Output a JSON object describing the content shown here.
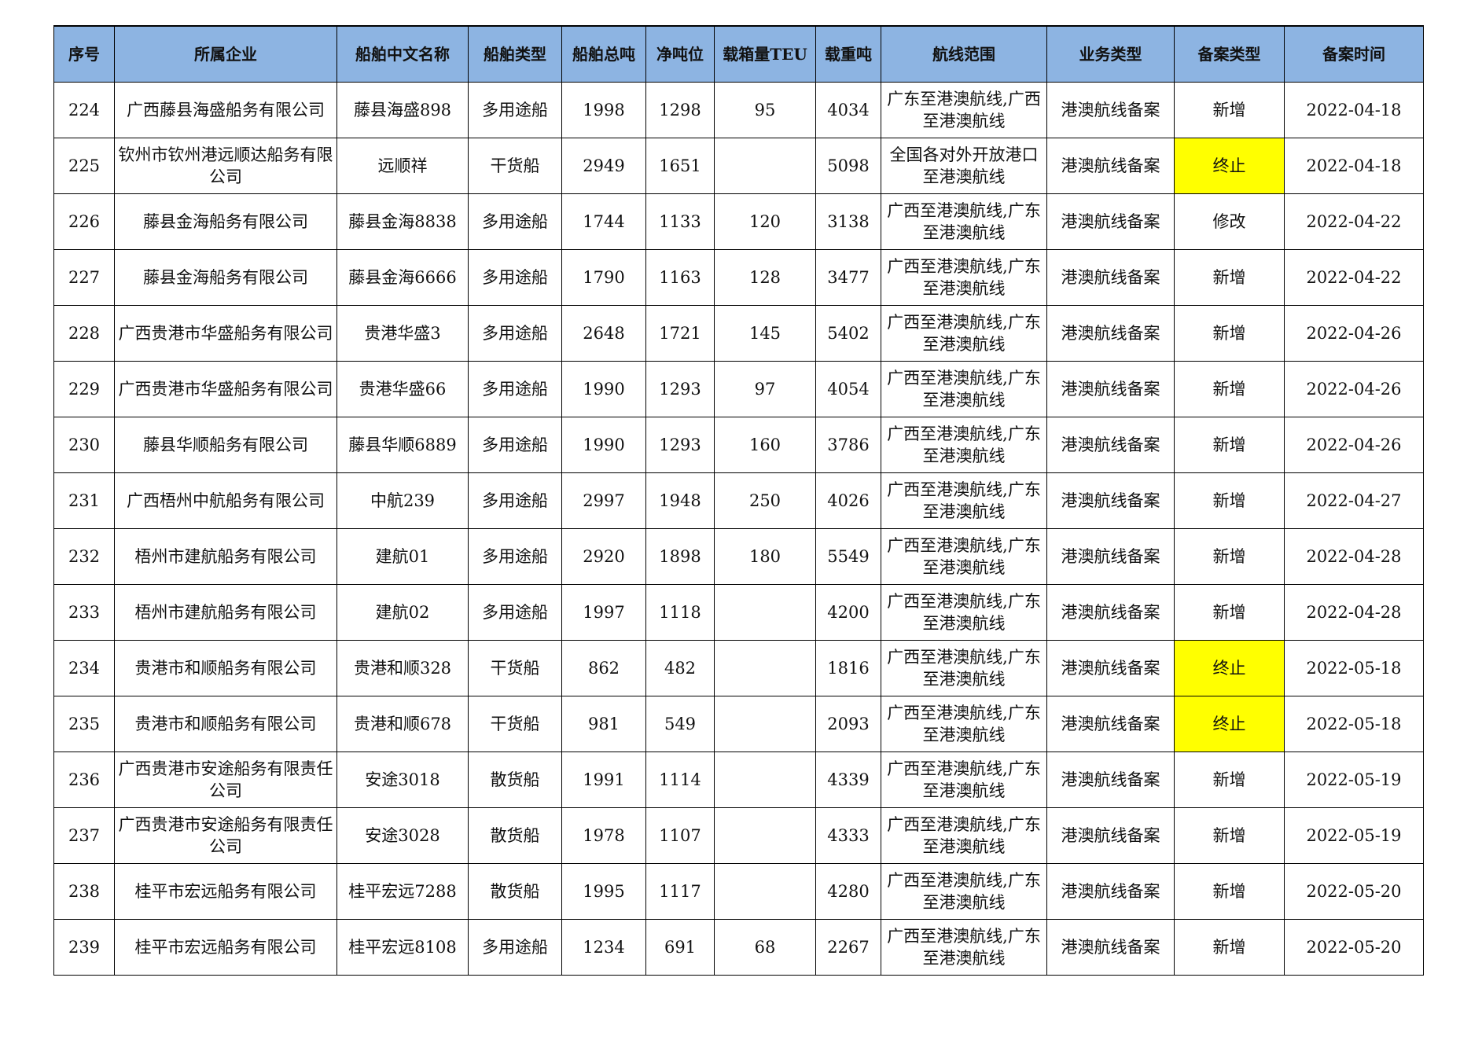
{
  "colors": {
    "header_bg": "#8DB4E2",
    "highlight": "#FFFF00"
  },
  "headers": [
    "序号",
    "所属企业",
    "船舶中文名称",
    "船舶类型",
    "船舶总吨",
    "净吨位",
    "载箱量TEU",
    "载重吨",
    "航线范围",
    "业务类型",
    "备案类型",
    "备案时间"
  ],
  "rows": [
    [
      "224",
      "广西藤县海盛船务有限公司",
      "藤县海盛898",
      "多用途船",
      "1998",
      "1298",
      "95",
      "4034",
      "广东至港澳航线,广西至港澳航线",
      "港澳航线备案",
      "新增",
      "2022-04-18"
    ],
    [
      "225",
      "钦州市钦州港远顺达船务有限公司",
      "远顺祥",
      "干货船",
      "2949",
      "1651",
      "",
      "5098",
      "全国各对外开放港口至港澳航线",
      "港澳航线备案",
      "终止",
      "2022-04-18"
    ],
    [
      "226",
      "藤县金海船务有限公司",
      "藤县金海8838",
      "多用途船",
      "1744",
      "1133",
      "120",
      "3138",
      "广西至港澳航线,广东至港澳航线",
      "港澳航线备案",
      "修改",
      "2022-04-22"
    ],
    [
      "227",
      "藤县金海船务有限公司",
      "藤县金海6666",
      "多用途船",
      "1790",
      "1163",
      "128",
      "3477",
      "广西至港澳航线,广东至港澳航线",
      "港澳航线备案",
      "新增",
      "2022-04-22"
    ],
    [
      "228",
      "广西贵港市华盛船务有限公司",
      "贵港华盛3",
      "多用途船",
      "2648",
      "1721",
      "145",
      "5402",
      "广西至港澳航线,广东至港澳航线",
      "港澳航线备案",
      "新增",
      "2022-04-26"
    ],
    [
      "229",
      "广西贵港市华盛船务有限公司",
      "贵港华盛66",
      "多用途船",
      "1990",
      "1293",
      "97",
      "4054",
      "广西至港澳航线,广东至港澳航线",
      "港澳航线备案",
      "新增",
      "2022-04-26"
    ],
    [
      "230",
      "藤县华顺船务有限公司",
      "藤县华顺6889",
      "多用途船",
      "1990",
      "1293",
      "160",
      "3786",
      "广西至港澳航线,广东至港澳航线",
      "港澳航线备案",
      "新增",
      "2022-04-26"
    ],
    [
      "231",
      "广西梧州中航船务有限公司",
      "中航239",
      "多用途船",
      "2997",
      "1948",
      "250",
      "4026",
      "广西至港澳航线,广东至港澳航线",
      "港澳航线备案",
      "新增",
      "2022-04-27"
    ],
    [
      "232",
      "梧州市建航船务有限公司",
      "建航01",
      "多用途船",
      "2920",
      "1898",
      "180",
      "5549",
      "广西至港澳航线,广东至港澳航线",
      "港澳航线备案",
      "新增",
      "2022-04-28"
    ],
    [
      "233",
      "梧州市建航船务有限公司",
      "建航02",
      "多用途船",
      "1997",
      "1118",
      "",
      "4200",
      "广西至港澳航线,广东至港澳航线",
      "港澳航线备案",
      "新增",
      "2022-04-28"
    ],
    [
      "234",
      "贵港市和顺船务有限公司",
      "贵港和顺328",
      "干货船",
      "862",
      "482",
      "",
      "1816",
      "广西至港澳航线,广东至港澳航线",
      "港澳航线备案",
      "终止",
      "2022-05-18"
    ],
    [
      "235",
      "贵港市和顺船务有限公司",
      "贵港和顺678",
      "干货船",
      "981",
      "549",
      "",
      "2093",
      "广西至港澳航线,广东至港澳航线",
      "港澳航线备案",
      "终止",
      "2022-05-18"
    ],
    [
      "236",
      "广西贵港市安途船务有限责任公司",
      "安途3018",
      "散货船",
      "1991",
      "1114",
      "",
      "4339",
      "广西至港澳航线,广东至港澳航线",
      "港澳航线备案",
      "新增",
      "2022-05-19"
    ],
    [
      "237",
      "广西贵港市安途船务有限责任公司",
      "安途3028",
      "散货船",
      "1978",
      "1107",
      "",
      "4333",
      "广西至港澳航线,广东至港澳航线",
      "港澳航线备案",
      "新增",
      "2022-05-19"
    ],
    [
      "238",
      "桂平市宏远船务有限公司",
      "桂平宏远7288",
      "散货船",
      "1995",
      "1117",
      "",
      "4280",
      "广西至港澳航线,广东至港澳航线",
      "港澳航线备案",
      "新增",
      "2022-05-20"
    ],
    [
      "239",
      "桂平市宏远船务有限公司",
      "桂平宏远8108",
      "多用途船",
      "1234",
      "691",
      "68",
      "2267",
      "广西至港澳航线,广东至港澳航线",
      "港澳航线备案",
      "新增",
      "2022-05-20"
    ]
  ]
}
